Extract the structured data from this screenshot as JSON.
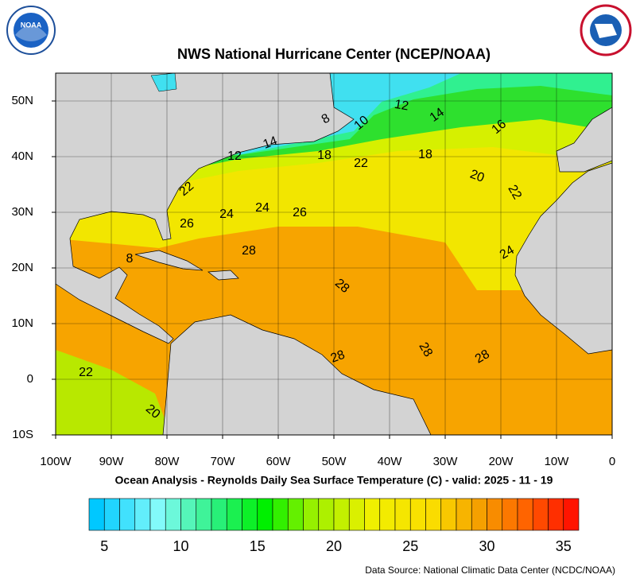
{
  "title": "NWS National Hurricane Center (NCEP/NOAA)",
  "logos": {
    "left": "NOAA"
  },
  "map": {
    "x_labels": [
      "100W",
      "90W",
      "80W",
      "70W",
      "60W",
      "50W",
      "40W",
      "30W",
      "20W",
      "10W",
      "0"
    ],
    "y_labels": [
      "50N",
      "40N",
      "30N",
      "20N",
      "10N",
      "0",
      "10S"
    ],
    "contour_labels": [
      8,
      10,
      12,
      14,
      16,
      12,
      14,
      18,
      22,
      18,
      20,
      22,
      22,
      24,
      24,
      26,
      26,
      28,
      8,
      24,
      28,
      28,
      28,
      28,
      22,
      20
    ]
  },
  "subtitle": "Ocean Analysis - Reynolds Daily Sea Surface Temperature (C) - valid: 2025 - 11 - 19",
  "colorbar": {
    "labels": [
      5,
      10,
      15,
      20,
      25,
      30,
      35
    ]
  },
  "source": "Data Source: National Climatic Data Center (NCDC/NOAA)"
}
